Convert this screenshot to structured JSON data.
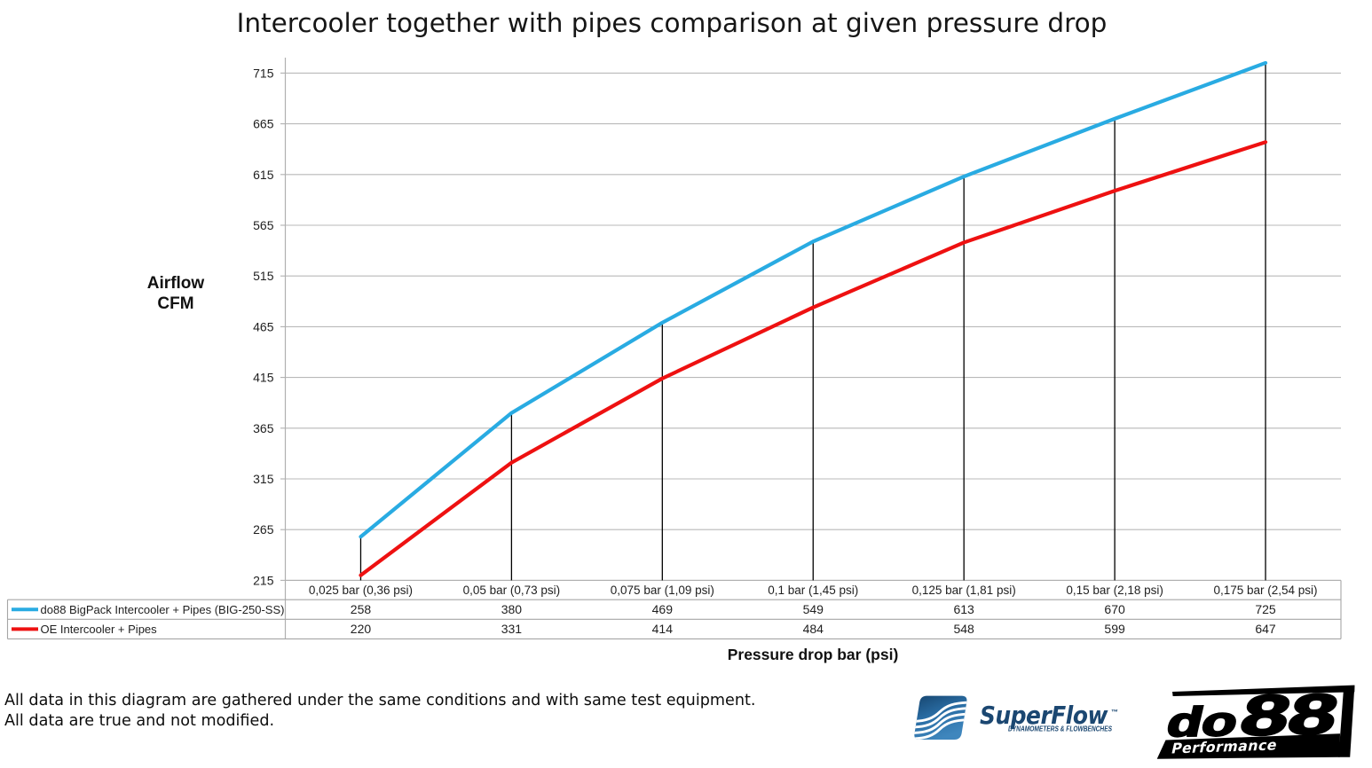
{
  "title": "Intercooler together with pipes comparison at given pressure drop",
  "chart_data": {
    "type": "line",
    "title": "Intercooler together with pipes comparison at given pressure drop",
    "xlabel": "Pressure drop bar (psi)",
    "ylabel": "Airflow CFM",
    "ylabel_lines": [
      "Airflow",
      "CFM"
    ],
    "categories": [
      "0,025 bar (0,36 psi)",
      "0,05 bar (0,73 psi)",
      "0,075 bar (1,09 psi)",
      "0,1 bar (1,45 psi)",
      "0,125 bar (1,81 psi)",
      "0,15 bar (2,18 psi)",
      "0,175 bar (2,54 psi)"
    ],
    "series": [
      {
        "name": "do88 BigPack Intercooler + Pipes (BIG-250-SS)",
        "color": "#29abe2",
        "values": [
          258,
          380,
          469,
          549,
          613,
          670,
          725
        ]
      },
      {
        "name": "OE Intercooler + Pipes",
        "color": "#ee1111",
        "values": [
          220,
          331,
          414,
          484,
          548,
          599,
          647
        ]
      }
    ],
    "y_ticks": [
      215,
      265,
      315,
      365,
      415,
      465,
      515,
      565,
      615,
      665,
      715
    ],
    "ylim": [
      215,
      730
    ],
    "grid": "horizontal",
    "drop_lines": true,
    "legend_position": "data-table-left",
    "gridline_color": "#b9b9b9",
    "axis_color": "#b0b0b0",
    "table_border_color": "#a6a6a6",
    "drop_line_color": "#000000"
  },
  "footer": {
    "line1": "All data in this diagram are gathered under the same conditions and with same test equipment.",
    "line2": "All data are true and not modified."
  },
  "logos": {
    "superflow": {
      "wordmark": "SuperFlow",
      "trademark": "™",
      "tagline": "DYNAMOMETERS & FLOWBENCHES",
      "brand_color": "#1b4771"
    },
    "do88": {
      "wordmark": "do88",
      "wordmark_do": "do",
      "wordmark_88": "88",
      "tagline": "Performance",
      "color": "#000000"
    }
  }
}
